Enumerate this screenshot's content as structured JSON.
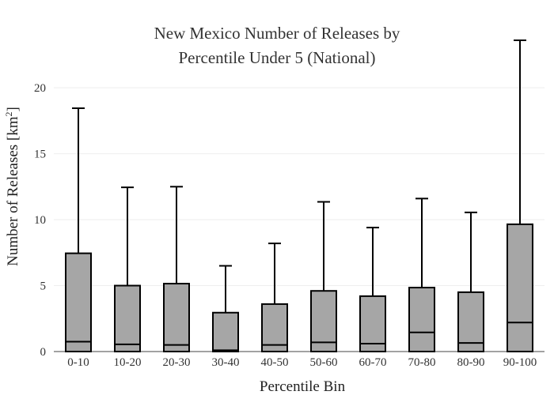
{
  "chart_data": {
    "type": "box",
    "title_lines": [
      "New Mexico Number of Releases by",
      "Percentile Under 5 (National)"
    ],
    "xlabel": "Percentile Bin",
    "ylabel_prefix": "Number of Releases  [km",
    "ylabel_sup": "2",
    "ylabel_suffix": "]",
    "ylim": [
      0,
      23.6
    ],
    "yticks": [
      0,
      5,
      10,
      15,
      20
    ],
    "grid": true,
    "colors": {
      "box_fill": "#a6a6a6",
      "box_stroke": "#000000",
      "grid": "#eeeeee",
      "axis": "#444444"
    },
    "categories": [
      "0-10",
      "10-20",
      "20-30",
      "30-40",
      "40-50",
      "50-60",
      "60-70",
      "70-80",
      "80-90",
      "90-100"
    ],
    "boxes": [
      {
        "min": 0,
        "q1": 0,
        "median": 0.75,
        "q3": 7.45,
        "max": 18.45
      },
      {
        "min": 0,
        "q1": 0,
        "median": 0.55,
        "q3": 5.0,
        "max": 12.45
      },
      {
        "min": 0,
        "q1": 0,
        "median": 0.5,
        "q3": 5.15,
        "max": 12.5
      },
      {
        "min": 0,
        "q1": 0,
        "median": 0.1,
        "q3": 2.95,
        "max": 6.5
      },
      {
        "min": 0,
        "q1": 0,
        "median": 0.5,
        "q3": 3.6,
        "max": 8.2
      },
      {
        "min": 0,
        "q1": 0,
        "median": 0.7,
        "q3": 4.6,
        "max": 11.35
      },
      {
        "min": 0,
        "q1": 0,
        "median": 0.6,
        "q3": 4.2,
        "max": 9.4
      },
      {
        "min": 0,
        "q1": 0,
        "median": 1.45,
        "q3": 4.85,
        "max": 11.6
      },
      {
        "min": 0,
        "q1": 0,
        "median": 0.65,
        "q3": 4.5,
        "max": 10.55
      },
      {
        "min": 0,
        "q1": 0,
        "median": 2.2,
        "q3": 9.65,
        "max": 23.6
      }
    ]
  }
}
